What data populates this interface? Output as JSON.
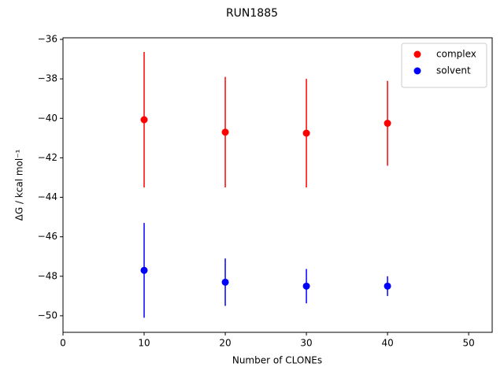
{
  "chart_data": {
    "type": "errorbar",
    "title": "RUN1885",
    "xlabel": "Number of CLONEs",
    "ylabel": "ΔG / kcal mol⁻¹",
    "series": [
      {
        "name": "complex",
        "color": "#ff0000",
        "x": [
          10,
          20,
          30,
          40
        ],
        "values": [
          -40.07,
          -40.7,
          -40.75,
          -40.25
        ],
        "errors": [
          3.43,
          2.8,
          2.75,
          2.15
        ]
      },
      {
        "name": "solvent",
        "color": "#0000ff",
        "x": [
          10,
          20,
          30,
          40
        ],
        "values": [
          -47.7,
          -48.3,
          -48.5,
          -48.5
        ],
        "errors": [
          2.4,
          1.2,
          0.87,
          0.5
        ]
      }
    ],
    "xlim": [
      0,
      52.9
    ],
    "xticks": [
      0,
      10,
      20,
      30,
      40,
      50
    ],
    "ylim": [
      -50.84,
      -35.92
    ],
    "yticks": [
      {
        "value": -50,
        "label": "−50"
      },
      {
        "value": -48,
        "label": "−48"
      },
      {
        "value": -46,
        "label": "−46"
      },
      {
        "value": -44,
        "label": "−44"
      },
      {
        "value": -42,
        "label": "−42"
      },
      {
        "value": -40,
        "label": "−40"
      },
      {
        "value": -38,
        "label": "−38"
      },
      {
        "value": -36,
        "label": "−36"
      }
    ],
    "legend": "upper right",
    "grid": false
  }
}
